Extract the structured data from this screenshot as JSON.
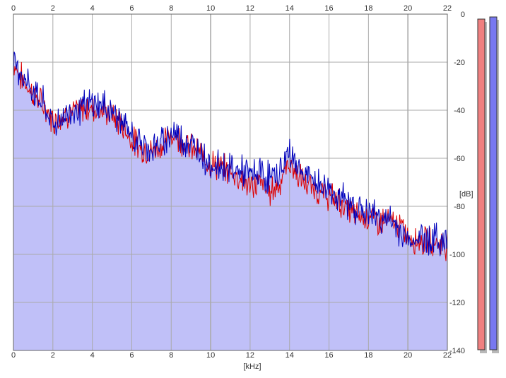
{
  "chart_data": {
    "type": "area",
    "xlabel": "[kHz]",
    "ylabel": "[dB]",
    "xlim": [
      0,
      22
    ],
    "ylim": [
      -140,
      0
    ],
    "x_ticks": [
      "0",
      "2",
      "4",
      "6",
      "8",
      "10",
      "12",
      "14",
      "16",
      "18",
      "20",
      "22"
    ],
    "y_ticks": [
      "0",
      "-20",
      "-40",
      "-60",
      "-80",
      "-100",
      "-120",
      "-140"
    ],
    "grid": true,
    "x": [
      0,
      0.5,
      1,
      1.5,
      2,
      2.5,
      3,
      3.5,
      4,
      4.5,
      5,
      5.5,
      6,
      6.5,
      7,
      7.5,
      8,
      8.5,
      9,
      9.5,
      10,
      10.5,
      11,
      11.5,
      12,
      12.5,
      13,
      13.5,
      14,
      14.5,
      15,
      15.5,
      16,
      16.5,
      17,
      17.5,
      18,
      18.5,
      19,
      19.5,
      20,
      20.5,
      21,
      21.5,
      22
    ],
    "series": [
      {
        "color": "#dd0000",
        "values": [
          -20,
          -28,
          -33,
          -38,
          -44,
          -42,
          -41,
          -40,
          -39,
          -40,
          -42,
          -46,
          -52,
          -56,
          -57,
          -55,
          -50,
          -52,
          -56,
          -58,
          -62,
          -64,
          -66,
          -68,
          -72,
          -70,
          -74,
          -70,
          -62,
          -68,
          -72,
          -74,
          -76,
          -78,
          -82,
          -84,
          -84,
          -86,
          -86,
          -88,
          -92,
          -94,
          -95,
          -95,
          -96
        ]
      },
      {
        "color": "#0000bb",
        "values": [
          -19,
          -26,
          -32,
          -37,
          -46,
          -43,
          -40,
          -39,
          -37,
          -38,
          -40,
          -45,
          -51,
          -54,
          -56,
          -54,
          -49,
          -51,
          -55,
          -57,
          -63,
          -63,
          -64,
          -65,
          -67,
          -66,
          -68,
          -66,
          -57,
          -65,
          -68,
          -71,
          -73,
          -76,
          -79,
          -81,
          -83,
          -84,
          -86,
          -89,
          -95,
          -93,
          -93,
          -94,
          -95
        ]
      }
    ],
    "fill_color": "#c0c0f8"
  },
  "meters": {
    "left": {
      "color": "#f08080"
    },
    "right": {
      "color": "#7878f0"
    }
  },
  "colors": {
    "grid": "#aaaaaa",
    "frame": "#666666",
    "background": "#ffffff"
  }
}
